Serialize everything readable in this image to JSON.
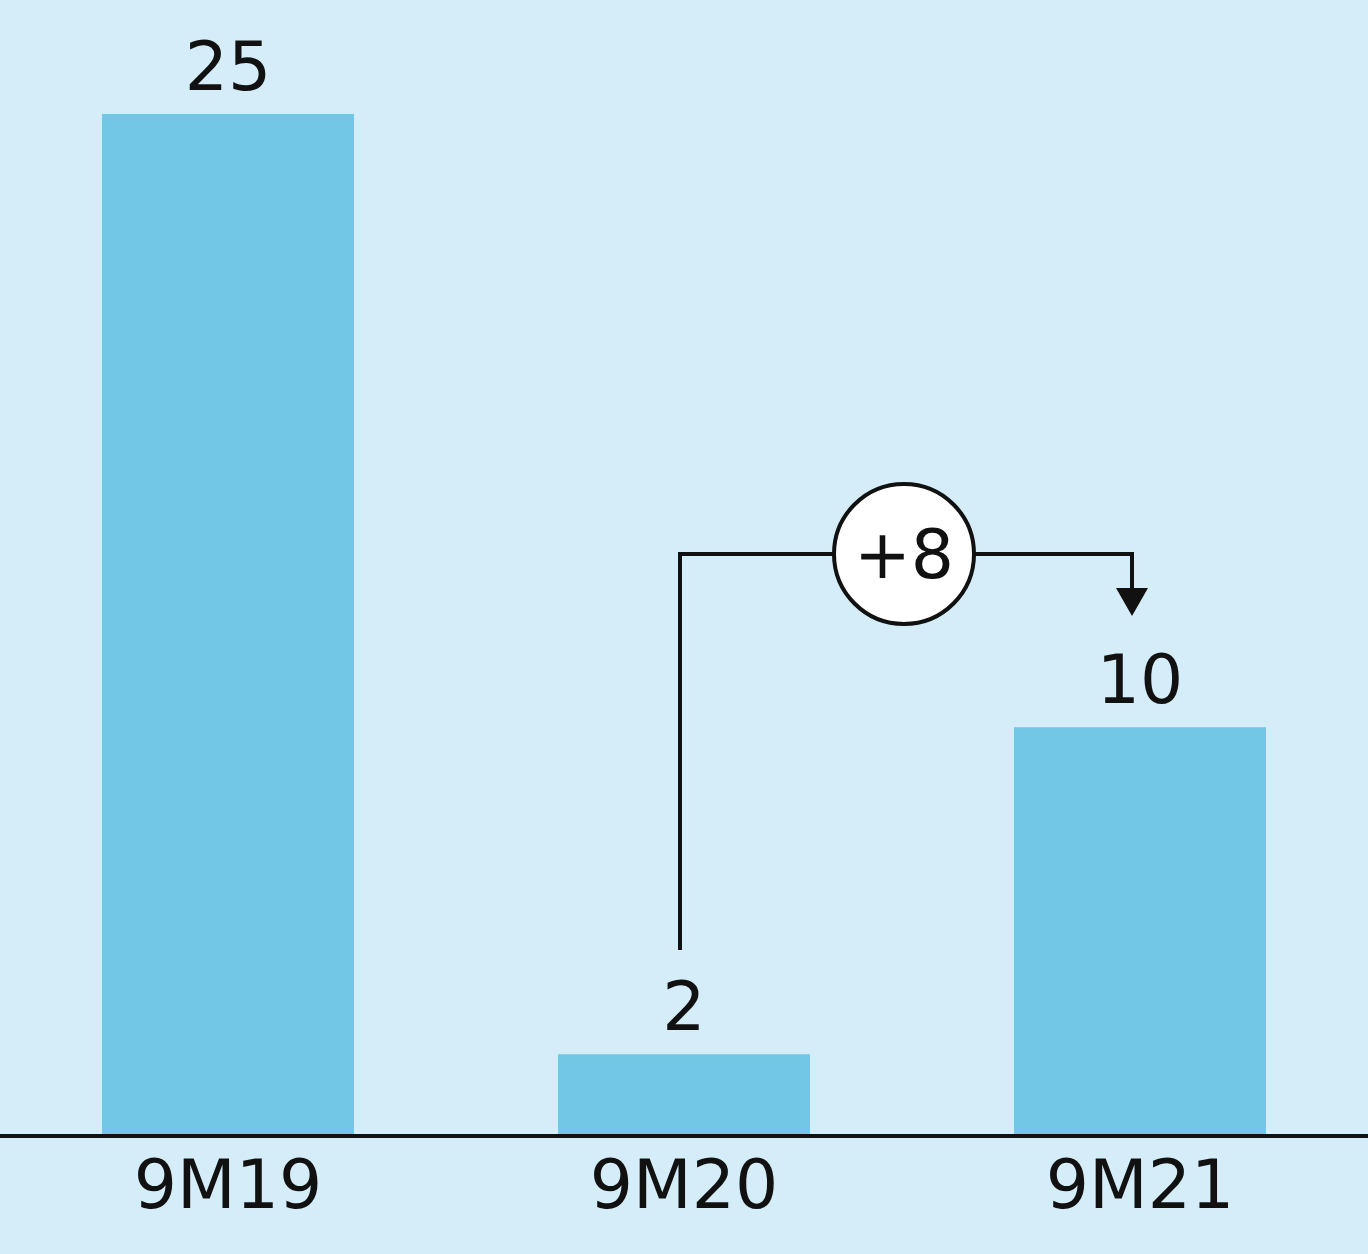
{
  "chart_data": {
    "type": "bar",
    "categories": [
      "9M19",
      "9M20",
      "9M21"
    ],
    "values": [
      25,
      2,
      10
    ],
    "color": "#72c6e6",
    "ylim": [
      0,
      25
    ],
    "data_labels": true,
    "tick_labels": "x",
    "annotations": [
      "+8"
    ]
  }
}
